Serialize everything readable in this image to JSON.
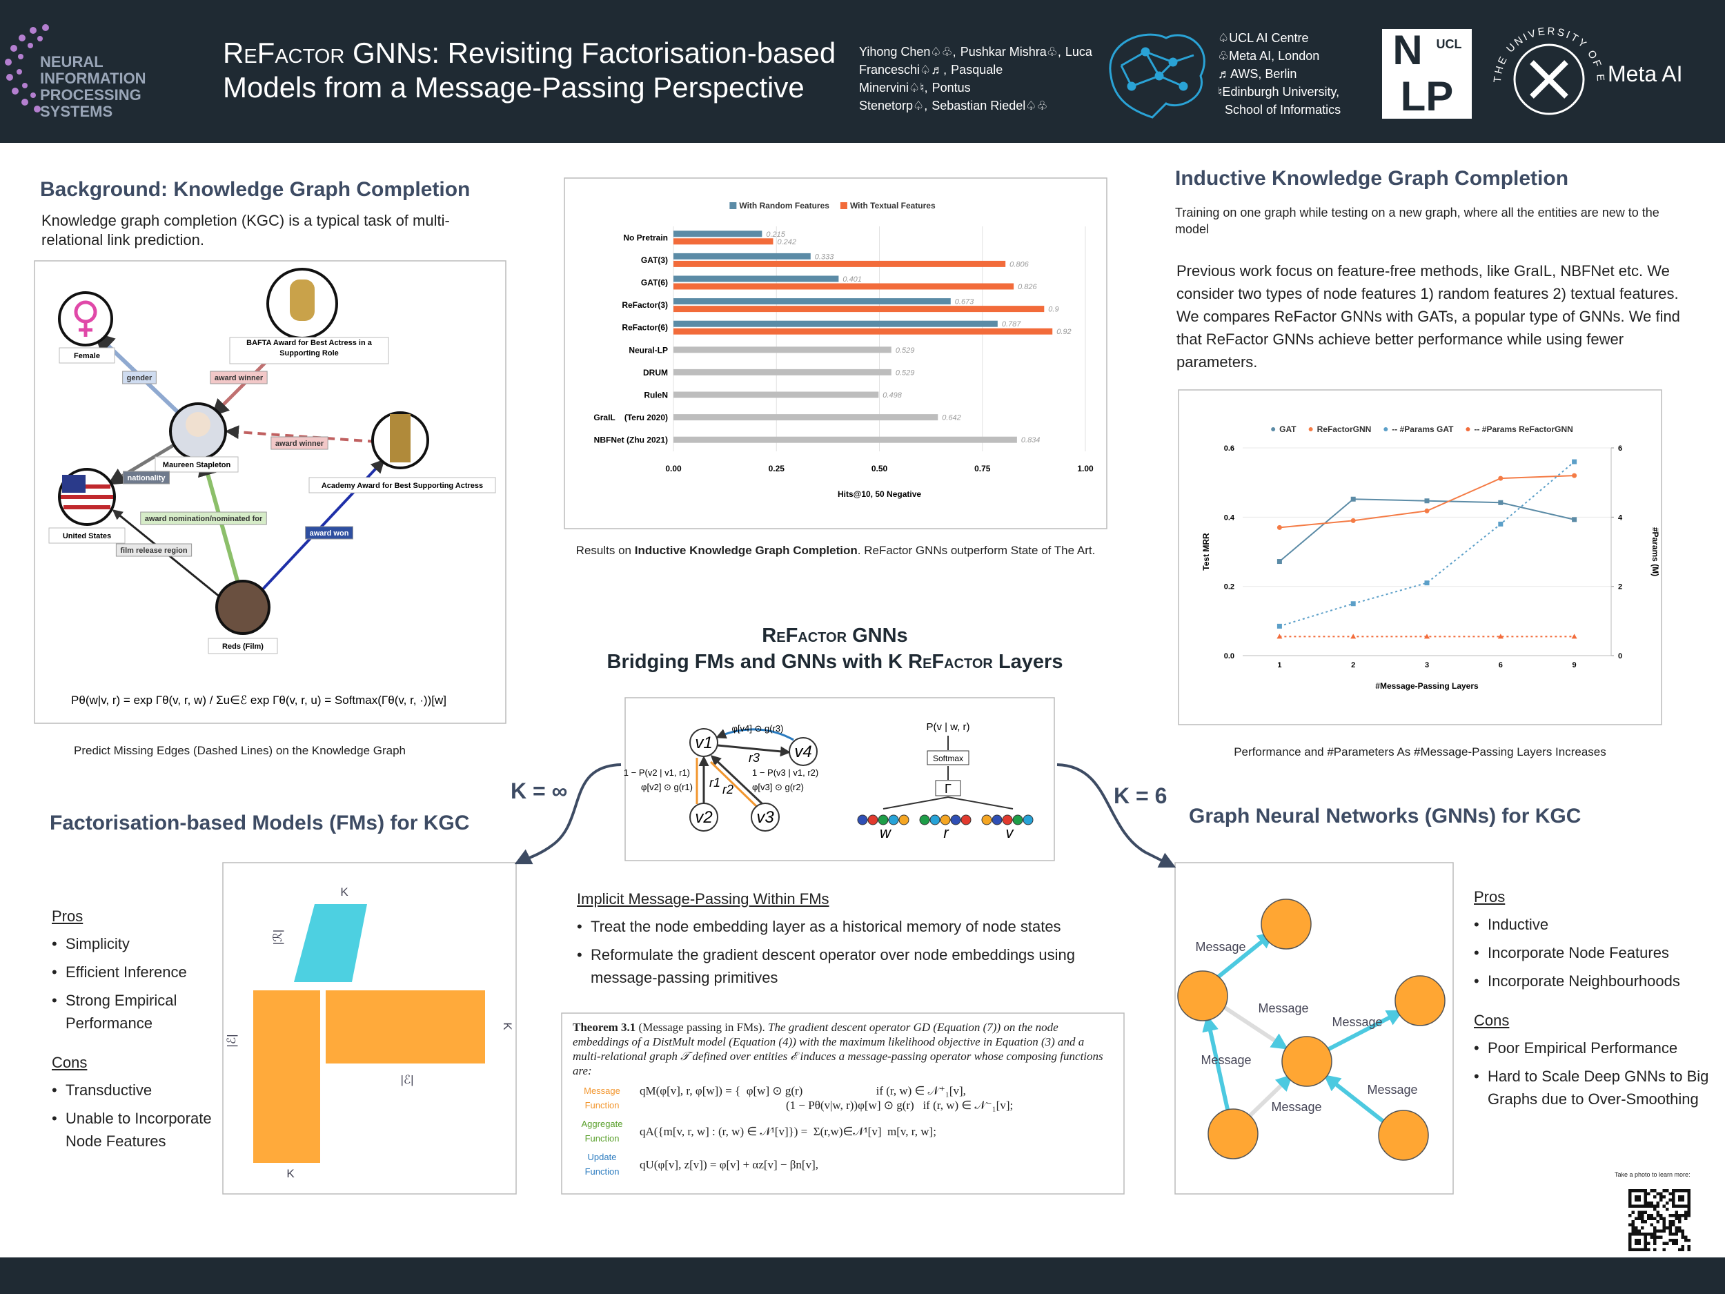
{
  "header": {
    "conference": "NEURAL INFORMATION PROCESSING SYSTEMS",
    "title_name": "ReFactor",
    "title_line1": "GNNs: Revisiting Factorisation-based",
    "title_line2": "Models from a Message-Passing Perspective",
    "authors": [
      "Yihong Chen♤♧,",
      "Pushkar Mishra♧,",
      "Luca Franceschi♤♬,",
      "Pasquale Minervini♤♮,",
      "Pontus Stenetorp♤,",
      "Sebastian Riedel♤♧"
    ],
    "affiliations": [
      "♤UCL AI Centre",
      "♧Meta AI, London",
      "♬AWS, Berlin",
      "♮Edinburgh University,",
      "School of Informatics"
    ],
    "logos": {
      "nlp_top": "N",
      "nlp_ucl": "UCL",
      "nlp_bottom": "LP",
      "edinburgh": "THE UNIVERSITY OF EDINBURGH",
      "meta": "Meta AI"
    }
  },
  "background": {
    "title": "Background: Knowledge Graph Completion",
    "text": "Knowledge graph completion (KGC)  is a typical task of multi-relational link prediction.",
    "nodes": [
      "Female",
      "BAFTA Award for Best Actress in a Supporting Role",
      "Maureen Stapleton",
      "Academy Award for Best Supporting Actress",
      "United States",
      "Reds (Film)"
    ],
    "edges": [
      "gender",
      "award winner",
      "award winner",
      "nationality",
      "award nomination/nominated for",
      "award won",
      "film release region"
    ],
    "formula": "Pθ(w|v, r) = exp Γθ(v, r, w) / Σu∈ℰ exp Γθ(v, r, u) = Softmax(Γθ(v, r, ·))[w]",
    "caption": "Predict Missing Edges (Dashed Lines) on the Knowledge Graph"
  },
  "chart_data": [
    {
      "type": "bar",
      "orientation": "horizontal",
      "categories": [
        "No Pretrain",
        "GAT(3)",
        "GAT(6)",
        "ReFactor(3)",
        "ReFactor(6)",
        "Neural-LP",
        "DRUM",
        "RuleN",
        "GraIL    (Teru 2020)",
        "NBFNet (Zhu 2021)"
      ],
      "series": [
        {
          "name": "With Random Features",
          "color": "#5b8ba6",
          "values": [
            0.215,
            0.333,
            0.401,
            0.673,
            0.787,
            null,
            null,
            null,
            null,
            null
          ]
        },
        {
          "name": "With Textual Features",
          "color": "#f26b3a",
          "values": [
            0.242,
            0.806,
            0.826,
            0.9,
            0.92,
            null,
            null,
            null,
            null,
            null
          ]
        },
        {
          "color": "#bdbdbd",
          "values": [
            null,
            null,
            null,
            null,
            null,
            0.529,
            0.529,
            0.498,
            0.642,
            0.834
          ]
        }
      ],
      "xlim": [
        0,
        1
      ],
      "xticks": [
        {
          "value": 0,
          "label": "0.00"
        },
        {
          "value": 0.25,
          "label": "0.25"
        },
        {
          "value": 0.5,
          "label": "0.50"
        },
        {
          "value": 0.75,
          "label": "0.75"
        },
        {
          "value": 1,
          "label": "1.00"
        }
      ],
      "xlabel": "Hits@10, 50 Negative",
      "grid": true,
      "legend": "top",
      "caption_parts": [
        "Results on",
        "Inductive Knowledge Graph Completion",
        ". ReFactor GNNs outperform State of The Art."
      ]
    },
    {
      "type": "line",
      "categories": [
        "1",
        "2",
        "3",
        "6",
        "9"
      ],
      "series": [
        {
          "name": "GAT",
          "color": "#5b8ba6",
          "marker": "square",
          "values": [
            0.272,
            0.452,
            0.447,
            0.442,
            0.393
          ]
        },
        {
          "name": "ReFactorGNN",
          "color": "#f47b45",
          "marker": "circle",
          "values": [
            0.37,
            0.39,
            0.418,
            0.512,
            0.52
          ]
        },
        {
          "name": "-- #Params GAT",
          "color": "#5b9fc8",
          "marker": "square",
          "dash": true,
          "axis": "y2",
          "values": [
            0.85,
            1.5,
            2.1,
            3.8,
            5.6
          ]
        },
        {
          "name": "-- #Params ReFactorGNN",
          "color": "#f26b3a",
          "marker": "triangle",
          "dash": true,
          "axis": "y2",
          "values": [
            0.55,
            0.55,
            0.55,
            0.55,
            0.55
          ]
        }
      ],
      "ylim": [
        0,
        0.6
      ],
      "yticks": [
        {
          "value": 0,
          "label": "0.0"
        },
        0.2,
        0.4,
        0.6
      ],
      "y2lim": [
        0,
        6
      ],
      "y2ticks": [
        0,
        2,
        4,
        6
      ],
      "xlabel": "#Message-Passing Layers",
      "ylabel": "Test MRR",
      "y2label": "#Params (M)",
      "grid": true,
      "legend": "top",
      "caption": "Performance and #Parameters As #Message-Passing Layers Increases"
    }
  ],
  "inductive": {
    "title": "Inductive Knowledge Graph Completion",
    "subtitle": "Training on one graph while testing on a new graph, where all the entities are new to the model",
    "text": "Previous work focus on feature-free methods, like GraIL, NBFNet etc. We consider two types of node features 1) random features 2) textual features. We compares ReFactor GNNs with GATs, a popular type of GNNs. We find that ReFactor GNNs achieve better performance while using fewer parameters."
  },
  "middle": {
    "title_name": "ReFactor",
    "title_rest": "GNNs",
    "subtitle_pre": "Bridging FMs and GNNs with K",
    "subtitle_name": "ReFactor",
    "subtitle_post": "Layers",
    "k_left": "K = ∞",
    "k_right": "K = 6",
    "diagram": {
      "nodes": [
        "v1",
        "v4",
        "v2",
        "v3"
      ],
      "relations": [
        "r3",
        "r1",
        "r2"
      ],
      "messages": [
        "φ[v4] ⊙ g(r3)",
        "1 − P(v2 | v1, r1)",
        "φ[v2] ⊙ g(r1)",
        "1 − P(v3 | v1, r2)",
        "φ[v3] ⊙ g(r2)"
      ],
      "output": "P(v | w, r)",
      "softmax": "Softmax",
      "gamma": "Γ",
      "inputs": [
        "w",
        "r",
        "v"
      ]
    }
  },
  "fms": {
    "title": "Factorisation-based Models (FMs) for KGC",
    "pros_title": "Pros",
    "pros": [
      "Simplicity",
      "Efficient Inference",
      "Strong Empirical Performance"
    ],
    "cons_title": "Cons",
    "cons": [
      "Transductive",
      "Unable to Incorporate Node Features"
    ],
    "diagram_labels": [
      "K",
      "|ℛ|",
      "|ℰ|",
      "K",
      "|ℰ|",
      "K"
    ]
  },
  "implicit": {
    "title": "Implicit Message-Passing Within FMs",
    "bullets": [
      "Treat the node embedding layer as a historical memory of node states",
      "Reformulate the gradient descent operator over node embeddings using message-passing primitives"
    ]
  },
  "theorem": {
    "name": "Theorem 3.1",
    "note": "(Message passing in FMs).",
    "body": "The gradient descent operator GD (Equation (7)) on the node embeddings of a DistMult model (Equation (4)) with the maximum likelihood objective in Equation (3) and a multi-relational graph 𝒯 defined over entities ℰ induces a message-passing operator whose composing functions are:",
    "rows": [
      {
        "label": "Message Function",
        "formula": [
          "qM(φ[v], r, φ[w]) = {  φ[w] ⊙ g(r)                         if (r, w) ∈ 𝒩⁺₁[v],",
          "(1 − Pθ(v|w, r))φ[w] ⊙ g(r)   if (r, w) ∈ 𝒩⁻₁[v];"
        ]
      },
      {
        "label": "Aggregate Function",
        "formula": [
          "qA({m[v, r, w] : (r, w) ∈ 𝒩¹[v]}) =  Σ(r,w)∈𝒩¹[v]  m[v, r, w];"
        ]
      },
      {
        "label": "Update Function",
        "formula": [
          "qU(φ[v], z[v]) = φ[v] + αz[v] − βn[v],"
        ]
      }
    ]
  },
  "gnns": {
    "title": "Graph Neural Networks (GNNs) for KGC",
    "pros_title": "Pros",
    "pros": [
      "Inductive",
      "Incorporate Node Features",
      "Incorporate Neighbourhoods"
    ],
    "cons_title": "Cons",
    "cons": [
      "Poor Empirical Performance",
      "Hard to Scale Deep GNNs to Big Graphs due to Over-Smoothing"
    ],
    "message": "Message"
  },
  "footer": {
    "qr_text": "Take a photo to learn more:"
  }
}
